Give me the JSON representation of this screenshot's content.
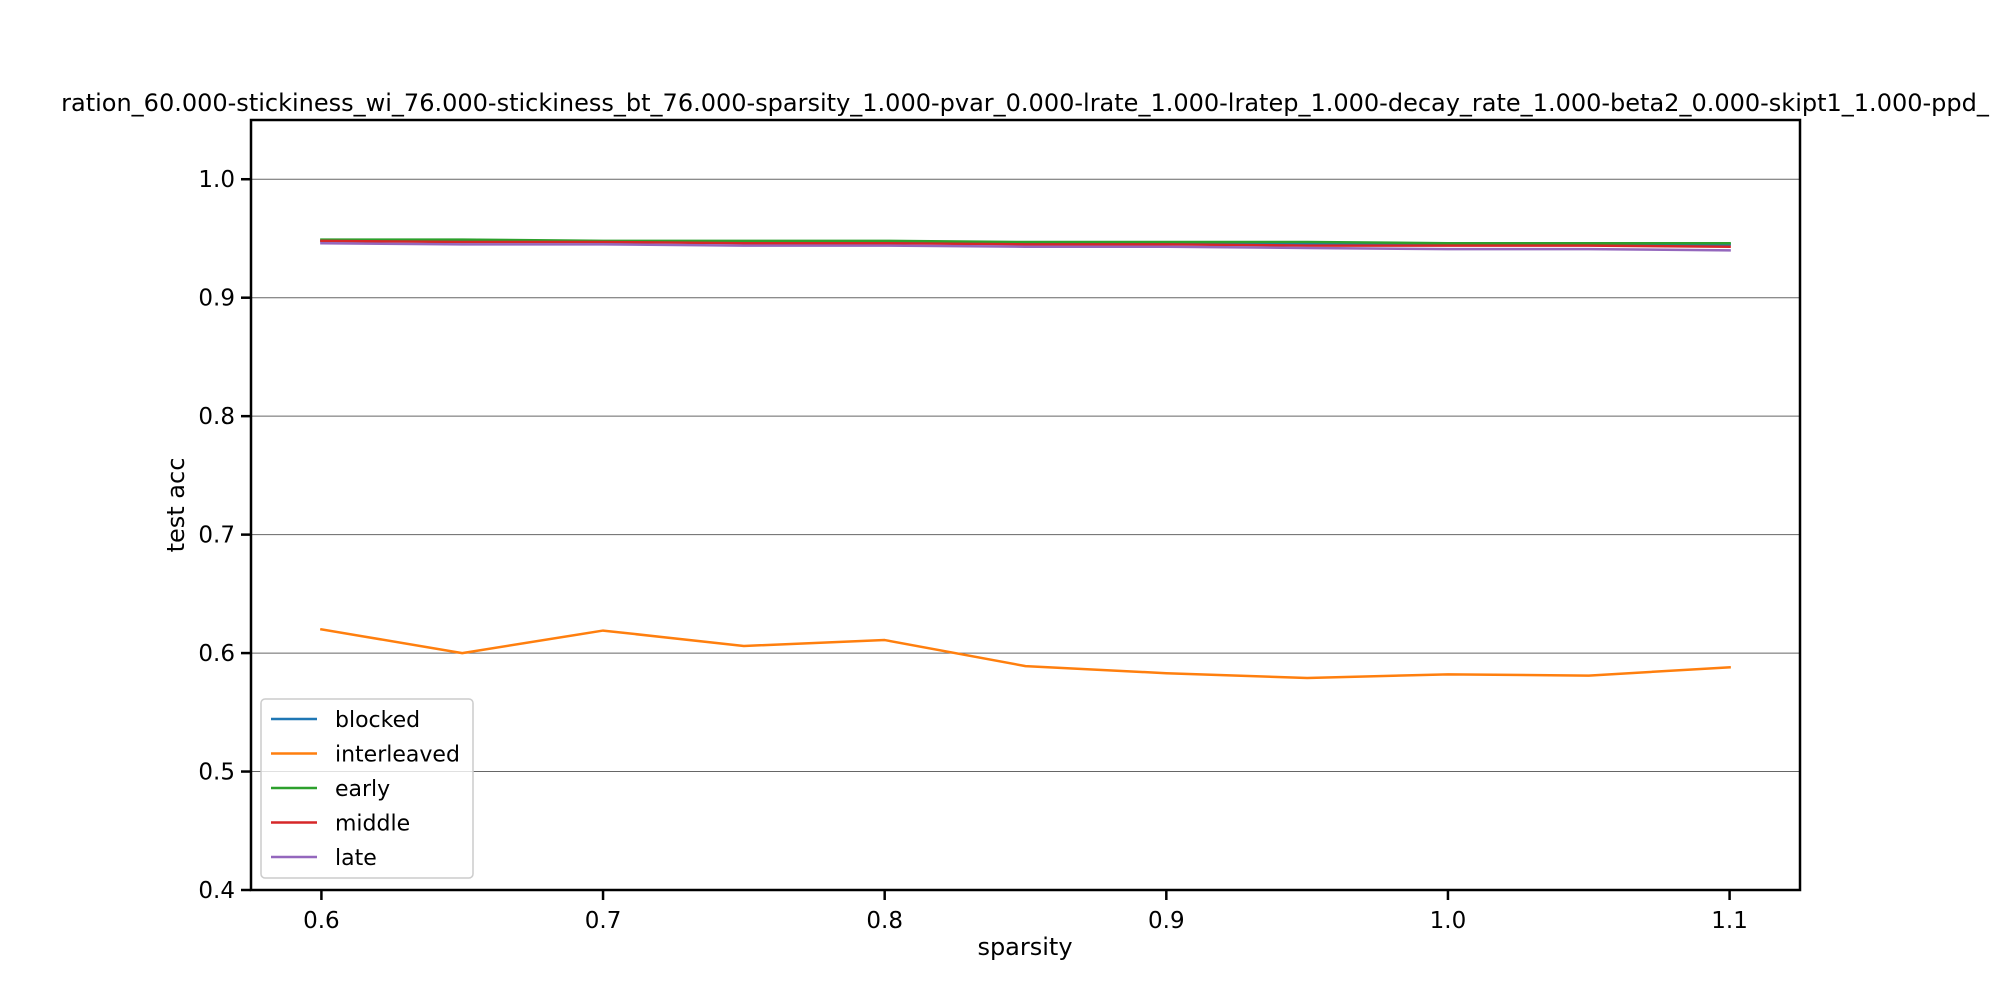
{
  "chart_data": {
    "type": "line",
    "title": "ration_60.000-stickiness_wi_76.000-stickiness_bt_76.000-sparsity_1.000-pvar_0.000-lrate_1.000-lratep_1.000-decay_rate_1.000-beta2_0.000-skipt1_1.000-ppd_",
    "xlabel": "sparsity",
    "ylabel": "test acc",
    "xlim": [
      0.575,
      1.125
    ],
    "ylim": [
      0.4,
      1.05
    ],
    "xticks": [
      "0.6",
      "0.7",
      "0.8",
      "0.9",
      "1.0",
      "1.1"
    ],
    "yticks": [
      "0.4",
      "0.5",
      "0.6",
      "0.7",
      "0.8",
      "0.9",
      "1.0"
    ],
    "grid": "horizontal",
    "legend_position": "lower-left",
    "x": [
      0.6,
      0.65,
      0.7,
      0.75,
      0.8,
      0.85,
      0.9,
      0.95,
      1.0,
      1.05,
      1.1
    ],
    "series": [
      {
        "name": "blocked",
        "color": "#1f77b4",
        "values": [
          0.948,
          0.948,
          0.947,
          0.947,
          0.947,
          0.946,
          0.946,
          0.946,
          0.945,
          0.945,
          0.945
        ]
      },
      {
        "name": "interleaved",
        "color": "#ff7f0e",
        "values": [
          0.62,
          0.6,
          0.619,
          0.606,
          0.611,
          0.589,
          0.583,
          0.579,
          0.582,
          0.581,
          0.588
        ]
      },
      {
        "name": "early",
        "color": "#2ca02c",
        "values": [
          0.949,
          0.949,
          0.948,
          0.948,
          0.948,
          0.947,
          0.947,
          0.947,
          0.946,
          0.946,
          0.946
        ]
      },
      {
        "name": "middle",
        "color": "#d62728",
        "values": [
          0.948,
          0.947,
          0.947,
          0.946,
          0.946,
          0.945,
          0.945,
          0.944,
          0.944,
          0.944,
          0.943
        ]
      },
      {
        "name": "late",
        "color": "#9467bd",
        "values": [
          0.946,
          0.945,
          0.945,
          0.944,
          0.944,
          0.943,
          0.943,
          0.942,
          0.941,
          0.941,
          0.94
        ]
      }
    ]
  }
}
